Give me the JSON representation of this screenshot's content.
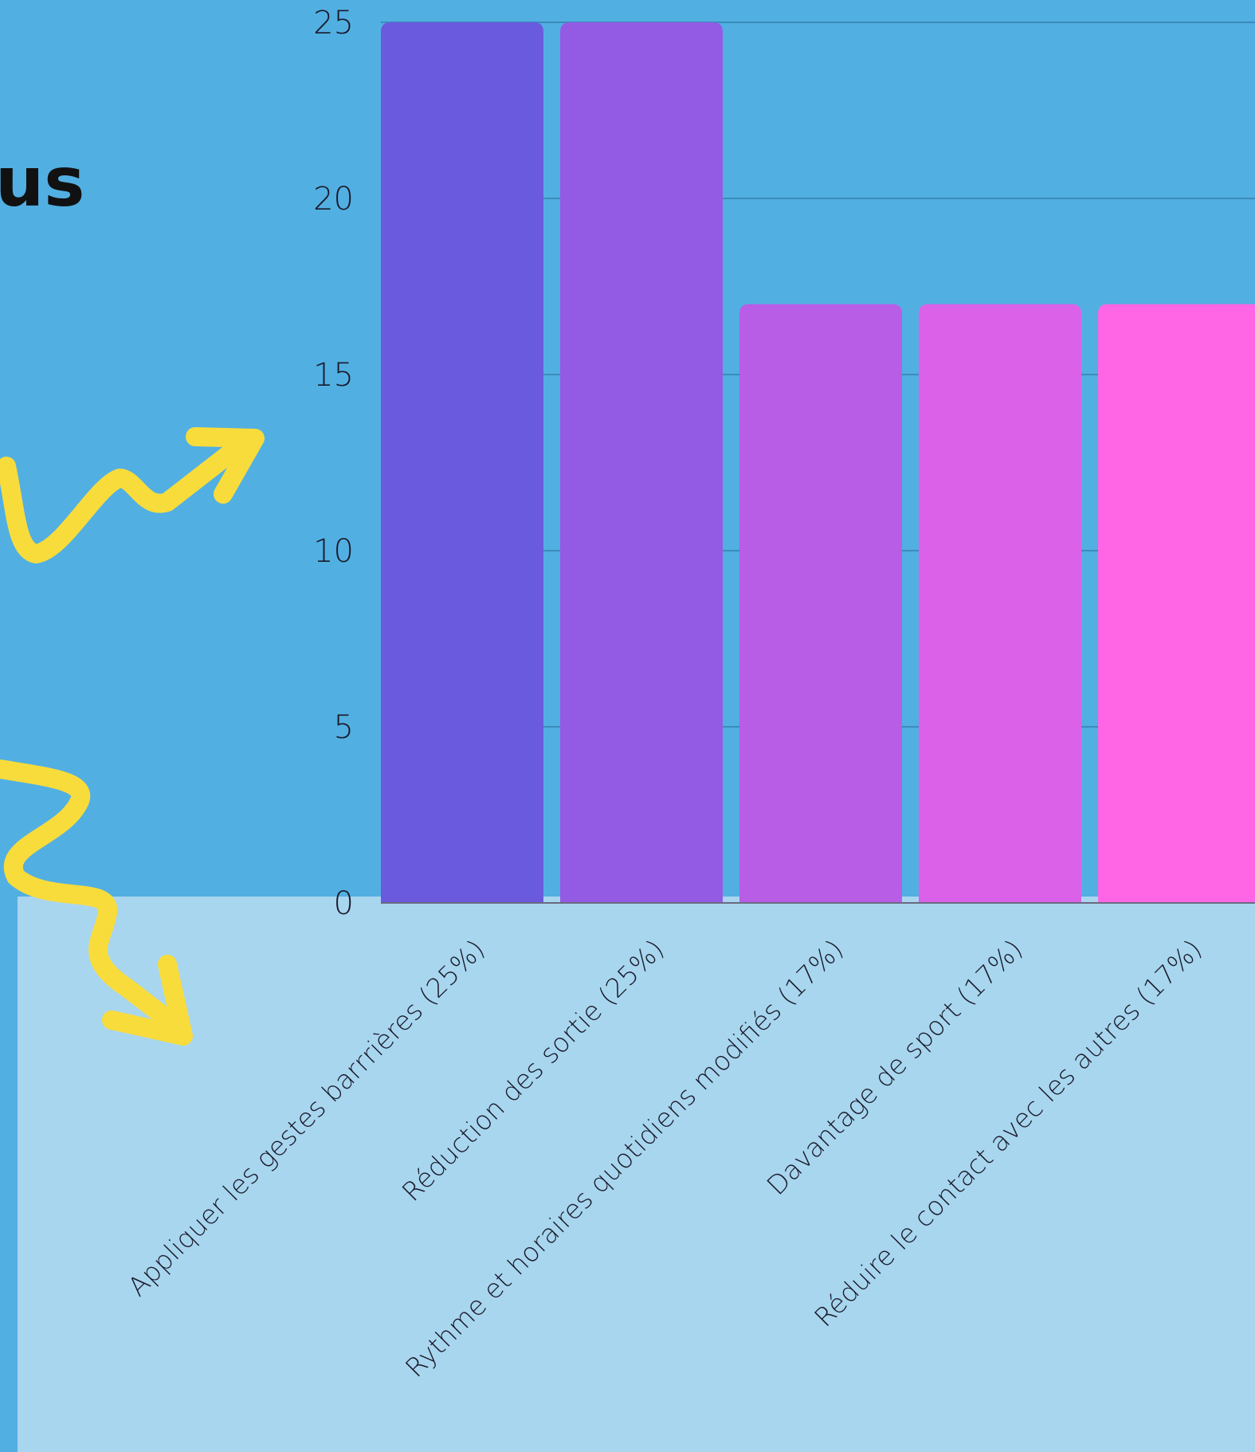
{
  "title": "us",
  "chart_data": {
    "type": "bar",
    "categories": [
      "Appliquer les gestes barrrières (25%)",
      "Réduction des sortie (25%)",
      "Rythme et horaires quotidiens modifiés (17%)",
      "Davantage de sport (17%)",
      "Réduire le contact avec les autres (17%)"
    ],
    "values": [
      25,
      25,
      17,
      17,
      17
    ],
    "colors": [
      "#6a5ade",
      "#935be4",
      "#b85de6",
      "#db62e8",
      "#ff66e6"
    ],
    "ylim": [
      0,
      25
    ],
    "yticks": [
      0,
      5,
      10,
      15,
      20,
      25
    ],
    "grid": true
  }
}
